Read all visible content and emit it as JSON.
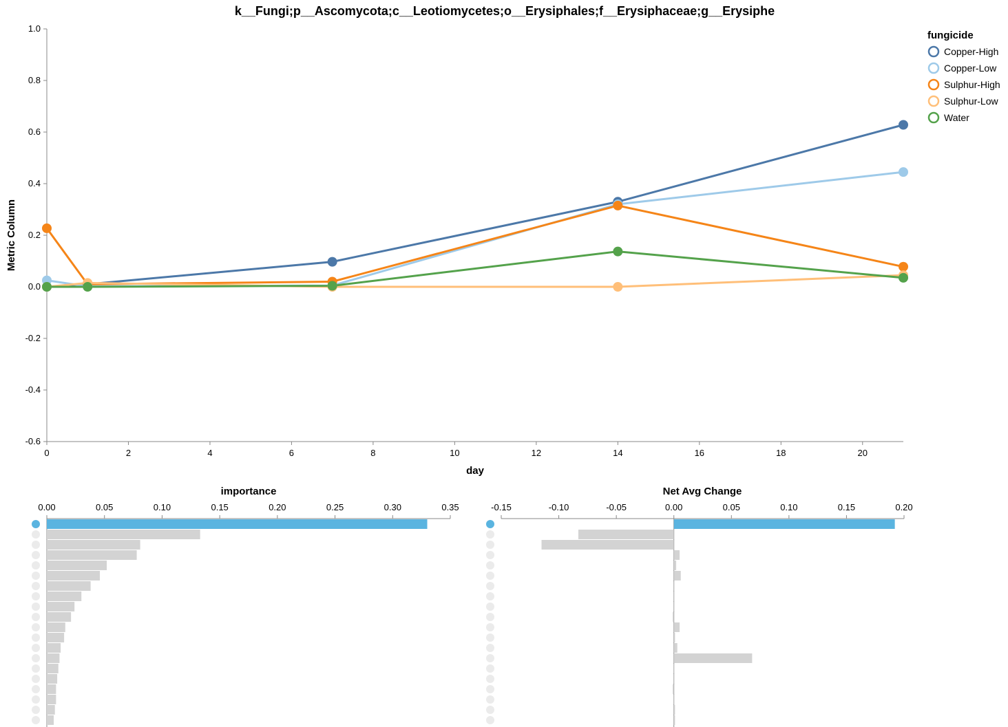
{
  "chart_data": [
    {
      "type": "line",
      "title": "k__Fungi;p__Ascomycota;c__Leotiomycetes;o__Erysiphales;f__Erysiphaceae;g__Erysiphe",
      "xlabel": "day",
      "ylabel": "Metric Column",
      "xlim": [
        0,
        21
      ],
      "ylim": [
        -0.6,
        1.0
      ],
      "xticks": [
        0,
        2,
        4,
        6,
        8,
        10,
        12,
        14,
        16,
        18,
        20
      ],
      "yticks": [
        "-0.6",
        "-0.4",
        "-0.2",
        "0.0",
        "0.2",
        "0.4",
        "0.6",
        "0.8",
        "1.0"
      ],
      "grid": false,
      "legend": {
        "title": "fungicide",
        "position": "top-right"
      },
      "series": [
        {
          "name": "Copper-High",
          "color": "#4c78a8",
          "x": [
            0,
            1,
            7,
            14,
            21
          ],
          "y": [
            0.0,
            0.01,
            0.097,
            0.33,
            0.628
          ]
        },
        {
          "name": "Copper-Low",
          "color": "#9ecae9",
          "x": [
            0,
            1,
            7,
            14,
            21
          ],
          "y": [
            0.025,
            0.002,
            0.005,
            0.32,
            0.445
          ]
        },
        {
          "name": "Sulphur-High",
          "color": "#f58518",
          "x": [
            0,
            1,
            7,
            14,
            21
          ],
          "y": [
            0.227,
            0.01,
            0.02,
            0.315,
            0.078
          ]
        },
        {
          "name": "Sulphur-Low",
          "color": "#ffbf79",
          "x": [
            0,
            1,
            7,
            14,
            21
          ],
          "y": [
            0.0,
            0.015,
            0.0,
            0.0,
            0.045
          ]
        },
        {
          "name": "Water",
          "color": "#54a24b",
          "x": [
            0,
            1,
            7,
            14,
            21
          ],
          "y": [
            0.0,
            0.0,
            0.004,
            0.137,
            0.035
          ]
        }
      ]
    },
    {
      "type": "bar",
      "orientation": "horizontal",
      "title": "importance",
      "xlim": [
        0,
        0.35
      ],
      "xticks": [
        "0.00",
        "0.05",
        "0.10",
        "0.15",
        "0.20",
        "0.25",
        "0.30",
        "0.35"
      ],
      "values": [
        0.33,
        0.133,
        0.081,
        0.078,
        0.052,
        0.046,
        0.038,
        0.03,
        0.024,
        0.021,
        0.016,
        0.015,
        0.012,
        0.011,
        0.01,
        0.009,
        0.008,
        0.008,
        0.007,
        0.006
      ],
      "highlight_index": 0,
      "highlight_color": "#5ab4e0",
      "bar_color": "#d3d3d3"
    },
    {
      "type": "bar",
      "orientation": "horizontal",
      "title": "Net Avg Change",
      "xlim": [
        -0.15,
        0.2
      ],
      "xticks": [
        "-0.15",
        "-0.10",
        "-0.05",
        "0.00",
        "0.05",
        "0.10",
        "0.15",
        "0.20"
      ],
      "values": [
        0.192,
        -0.083,
        -0.115,
        0.005,
        0.002,
        0.006,
        0.0005,
        0.0,
        0.0,
        -0.001,
        0.005,
        0.001,
        0.003,
        0.068,
        -0.0005,
        0.0,
        -0.001,
        0.0,
        0.001,
        0.001
      ],
      "highlight_index": 0,
      "highlight_color": "#5ab4e0",
      "bar_color": "#d3d3d3"
    }
  ]
}
